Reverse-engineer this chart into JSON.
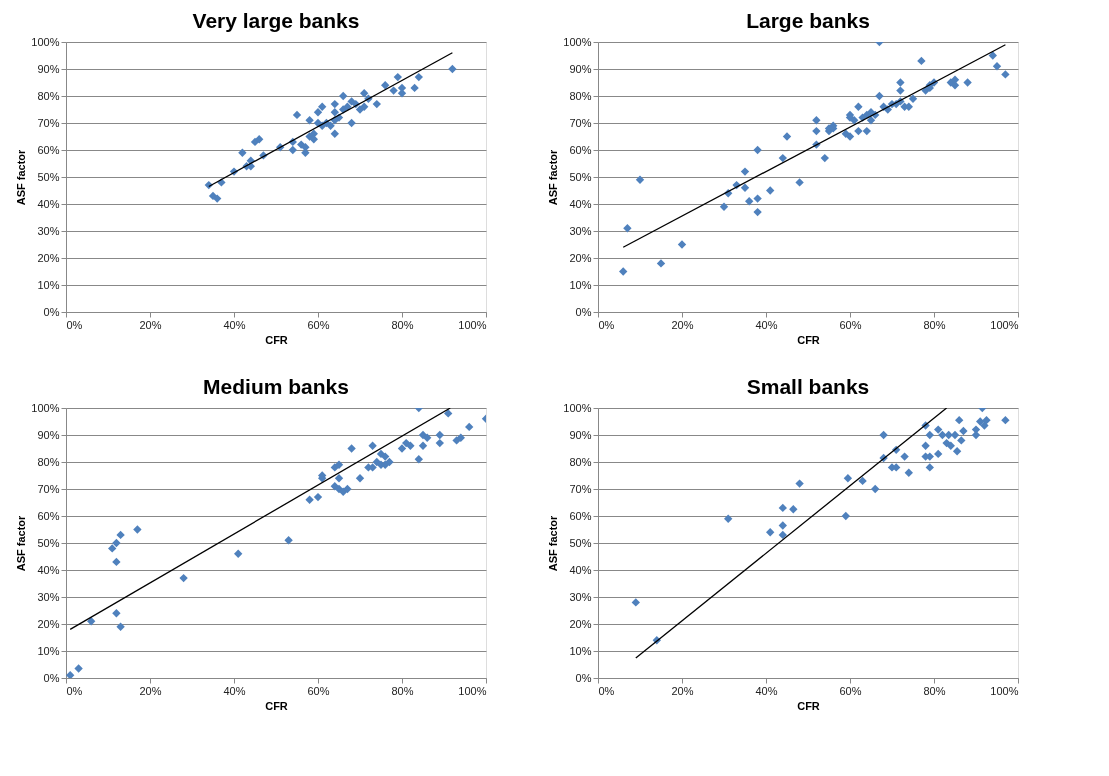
{
  "chart_data": [
    {
      "type": "scatter",
      "title": "Very large banks",
      "xlabel": "CFR",
      "ylabel": "ASF factor",
      "grid": "y",
      "xlim": [
        0,
        100
      ],
      "ylim": [
        0,
        100
      ],
      "xticks": [
        {
          "value": 0,
          "label": "0%"
        },
        {
          "value": 20,
          "label": "20%"
        },
        {
          "value": 40,
          "label": "40%"
        },
        {
          "value": 60,
          "label": "60%"
        },
        {
          "value": 80,
          "label": "80%"
        },
        {
          "value": 100,
          "label": "100%"
        }
      ],
      "yticks": [
        {
          "value": 0,
          "label": "0%"
        },
        {
          "value": 10,
          "label": "10%"
        },
        {
          "value": 20,
          "label": "20%"
        },
        {
          "value": 30,
          "label": "30%"
        },
        {
          "value": 40,
          "label": "40%"
        },
        {
          "value": 50,
          "label": "50%"
        },
        {
          "value": 60,
          "label": "60%"
        },
        {
          "value": 70,
          "label": "70%"
        },
        {
          "value": 80,
          "label": "80%"
        },
        {
          "value": 90,
          "label": "90%"
        },
        {
          "value": 100,
          "label": "100%"
        }
      ],
      "series": [
        {
          "marker": "diamond",
          "color": "#4f81bd",
          "x": [
            34,
            35,
            36,
            37,
            40,
            42,
            43,
            44,
            44,
            45,
            46,
            47,
            51,
            54,
            54,
            55,
            56,
            57,
            57,
            58,
            58,
            59,
            59,
            60,
            60,
            61,
            61,
            62,
            63,
            64,
            64,
            64,
            64,
            65,
            66,
            66,
            67,
            68,
            68,
            69,
            70,
            71,
            71,
            72,
            74,
            76,
            78,
            79,
            80,
            80,
            83,
            84,
            92
          ],
          "values": [
            47,
            43,
            42,
            48,
            52,
            59,
            54,
            54,
            56,
            63,
            64,
            58,
            61,
            60,
            63,
            73,
            62,
            59,
            61,
            65,
            71,
            66,
            64,
            74,
            70,
            76,
            69,
            70,
            69,
            74,
            77,
            66,
            71,
            72,
            75,
            80,
            76,
            70,
            78,
            77,
            75,
            81,
            76,
            79,
            77,
            84,
            82,
            87,
            83,
            81,
            83,
            87,
            90
          ]
        },
        {
          "type": "line",
          "marker": "none",
          "line_style": "solid",
          "color": "#000000",
          "x": [
            34,
            92
          ],
          "values": [
            46.5,
            96
          ]
        }
      ]
    },
    {
      "type": "scatter",
      "title": "Large banks",
      "xlabel": "CFR",
      "ylabel": "ASF factor",
      "grid": "y",
      "xlim": [
        0,
        100
      ],
      "ylim": [
        0,
        100
      ],
      "xticks": [
        {
          "value": 0,
          "label": "0%"
        },
        {
          "value": 20,
          "label": "20%"
        },
        {
          "value": 40,
          "label": "40%"
        },
        {
          "value": 60,
          "label": "60%"
        },
        {
          "value": 80,
          "label": "80%"
        },
        {
          "value": 100,
          "label": "100%"
        }
      ],
      "yticks": [
        {
          "value": 0,
          "label": "0%"
        },
        {
          "value": 10,
          "label": "10%"
        },
        {
          "value": 20,
          "label": "20%"
        },
        {
          "value": 30,
          "label": "30%"
        },
        {
          "value": 40,
          "label": "40%"
        },
        {
          "value": 50,
          "label": "50%"
        },
        {
          "value": 60,
          "label": "60%"
        },
        {
          "value": 70,
          "label": "70%"
        },
        {
          "value": 80,
          "label": "80%"
        },
        {
          "value": 90,
          "label": "90%"
        },
        {
          "value": 100,
          "label": "100%"
        }
      ],
      "series": [
        {
          "marker": "diamond",
          "color": "#4f81bd",
          "x": [
            6,
            7,
            10,
            15,
            20,
            30,
            31,
            33,
            35,
            35,
            36,
            38,
            38,
            38,
            41,
            44,
            45,
            48,
            52,
            52,
            52,
            54,
            55,
            55,
            56,
            56,
            59,
            60,
            60,
            60,
            61,
            62,
            62,
            63,
            64,
            64,
            65,
            65,
            66,
            67,
            67,
            68,
            69,
            70,
            71,
            72,
            72,
            72,
            73,
            74,
            75,
            77,
            78,
            79,
            79,
            80,
            84,
            85,
            85,
            88,
            94,
            95,
            97
          ],
          "values": [
            15,
            31,
            49,
            18,
            25,
            39,
            44,
            47,
            52,
            46,
            41,
            60,
            42,
            37,
            45,
            57,
            65,
            48,
            62,
            67,
            71,
            57,
            67,
            68,
            69,
            68,
            66,
            65,
            73,
            72,
            71,
            67,
            76,
            72,
            73,
            67,
            71,
            74,
            73,
            80,
            100,
            76,
            75,
            77,
            77,
            78,
            85,
            82,
            76,
            76,
            79,
            93,
            82,
            84,
            83,
            85,
            85,
            84,
            86,
            85,
            95,
            91,
            88
          ]
        },
        {
          "type": "line",
          "marker": "none",
          "line_style": "solid",
          "color": "#000000",
          "x": [
            6,
            97
          ],
          "values": [
            24,
            99
          ]
        }
      ]
    },
    {
      "type": "scatter",
      "title": "Medium banks",
      "xlabel": "CFR",
      "ylabel": "ASF factor",
      "grid": "y",
      "xlim": [
        0,
        100
      ],
      "ylim": [
        0,
        100
      ],
      "xticks": [
        {
          "value": 0,
          "label": "0%"
        },
        {
          "value": 20,
          "label": "20%"
        },
        {
          "value": 40,
          "label": "40%"
        },
        {
          "value": 60,
          "label": "60%"
        },
        {
          "value": 80,
          "label": "80%"
        },
        {
          "value": 100,
          "label": "100%"
        }
      ],
      "yticks": [
        {
          "value": 0,
          "label": "0%"
        },
        {
          "value": 10,
          "label": "10%"
        },
        {
          "value": 20,
          "label": "20%"
        },
        {
          "value": 30,
          "label": "30%"
        },
        {
          "value": 40,
          "label": "40%"
        },
        {
          "value": 50,
          "label": "50%"
        },
        {
          "value": 60,
          "label": "60%"
        },
        {
          "value": 70,
          "label": "70%"
        },
        {
          "value": 80,
          "label": "80%"
        },
        {
          "value": 90,
          "label": "90%"
        },
        {
          "value": 100,
          "label": "100%"
        }
      ],
      "series": [
        {
          "marker": "diamond",
          "color": "#4f81bd",
          "x": [
            1,
            3,
            6,
            11,
            12,
            12,
            12,
            13,
            13,
            17,
            28,
            41,
            53,
            58,
            60,
            61,
            61,
            64,
            64,
            65,
            65,
            65,
            66,
            67,
            68,
            70,
            72,
            73,
            73,
            74,
            75,
            75,
            76,
            76,
            77,
            80,
            81,
            82,
            84,
            84,
            85,
            85,
            86,
            89,
            89,
            91,
            93,
            94,
            96,
            100
          ],
          "values": [
            1,
            3.5,
            21,
            48,
            50,
            24,
            43,
            53,
            19,
            55,
            37,
            46,
            51,
            66,
            67,
            74,
            75,
            71,
            78,
            79,
            74,
            70,
            69,
            70,
            85,
            74,
            78,
            86,
            78,
            80,
            83,
            79,
            82,
            79,
            80,
            85,
            87,
            86,
            81,
            100,
            90,
            86,
            89,
            87,
            90,
            98,
            88,
            89,
            93,
            96
          ]
        },
        {
          "type": "line",
          "marker": "none",
          "line_style": "solid",
          "color": "#000000",
          "x": [
            1,
            91.5
          ],
          "values": [
            18,
            100
          ]
        }
      ]
    },
    {
      "type": "scatter",
      "title": "Small banks",
      "xlabel": "CFR",
      "ylabel": "ASF factor",
      "grid": "y",
      "xlim": [
        0,
        100
      ],
      "ylim": [
        0,
        100
      ],
      "xticks": [
        {
          "value": 0,
          "label": "0%"
        },
        {
          "value": 20,
          "label": "20%"
        },
        {
          "value": 40,
          "label": "40%"
        },
        {
          "value": 60,
          "label": "60%"
        },
        {
          "value": 80,
          "label": "80%"
        },
        {
          "value": 100,
          "label": "100%"
        }
      ],
      "yticks": [
        {
          "value": 0,
          "label": "0%"
        },
        {
          "value": 10,
          "label": "10%"
        },
        {
          "value": 20,
          "label": "20%"
        },
        {
          "value": 30,
          "label": "30%"
        },
        {
          "value": 40,
          "label": "40%"
        },
        {
          "value": 50,
          "label": "50%"
        },
        {
          "value": 60,
          "label": "60%"
        },
        {
          "value": 70,
          "label": "70%"
        },
        {
          "value": 80,
          "label": "80%"
        },
        {
          "value": 90,
          "label": "90%"
        },
        {
          "value": 100,
          "label": "100%"
        }
      ],
      "series": [
        {
          "marker": "diamond",
          "color": "#4f81bd",
          "x": [
            9,
            14,
            31,
            41,
            44,
            44,
            44,
            46.5,
            48,
            59,
            59.5,
            63,
            66,
            68,
            68,
            70,
            71,
            71,
            73,
            74,
            78,
            78,
            78,
            79,
            79,
            79,
            81,
            81,
            82,
            83,
            83.5,
            84,
            85,
            85.5,
            86,
            86.5,
            87,
            90,
            90,
            91,
            91.5,
            92,
            92.5,
            97
          ],
          "values": [
            28,
            14,
            59,
            54,
            56.5,
            53,
            63,
            62.5,
            72,
            60,
            74,
            73,
            70,
            90,
            81.5,
            78,
            84.5,
            78,
            82,
            76,
            86,
            93.5,
            82,
            78,
            90,
            82,
            83,
            92,
            90,
            87,
            90,
            86,
            90,
            84,
            95.5,
            88,
            91.5,
            90,
            92,
            95,
            100,
            93.5,
            95.5,
            95.5
          ]
        },
        {
          "type": "line",
          "marker": "none",
          "line_style": "solid",
          "color": "#000000",
          "x": [
            9,
            83
          ],
          "values": [
            7.4,
            100
          ]
        }
      ]
    }
  ]
}
